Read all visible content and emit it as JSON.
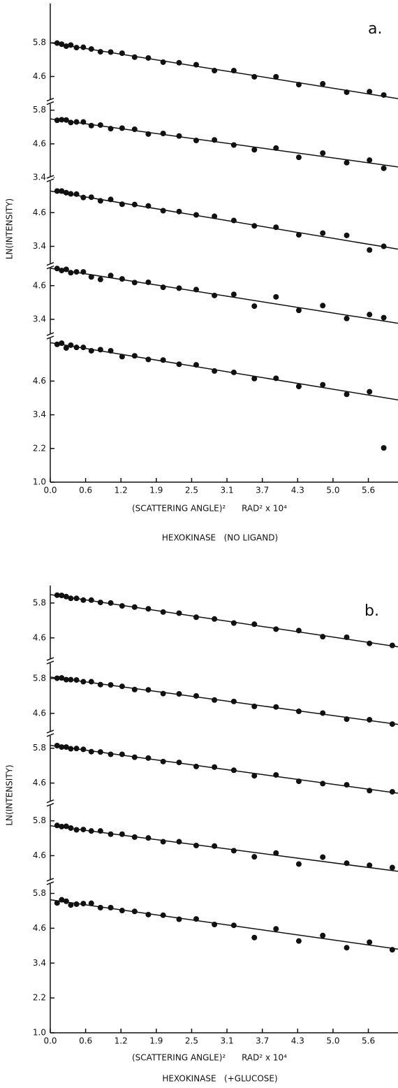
{
  "chart_data": [
    {
      "type": "scatter",
      "title": "HEXOKINASE   (NO LIGAND)",
      "annotation": "a.",
      "xlabel": "(SCATTERING ANGLE)²      RAD² x 10⁴",
      "ylabel": "LN(INTENSITY)",
      "color": "#111111",
      "x": [
        0.12,
        0.2,
        0.28,
        0.36,
        0.46,
        0.58,
        0.72,
        0.88,
        1.06,
        1.26,
        1.48,
        1.72,
        1.98,
        2.26,
        2.56,
        2.88,
        3.22,
        3.58,
        3.96,
        4.36,
        4.78,
        5.2,
        5.6,
        5.85
      ],
      "xlim": [
        0,
        6.1
      ],
      "xticks": [
        {
          "value": 0,
          "label": "0.0"
        },
        {
          "value": 0.62,
          "label": "0.6"
        },
        {
          "value": 1.24,
          "label": "1.2"
        },
        {
          "value": 1.86,
          "label": "1.9"
        },
        {
          "value": 2.48,
          "label": "2.5"
        },
        3.1,
        {
          "value": 3.72,
          "label": "3.7"
        },
        {
          "value": 4.34,
          "label": "4.3"
        },
        {
          "value": 4.96,
          "label": "5.0"
        },
        {
          "value": 5.58,
          "label": "5.6"
        }
      ],
      "panels": [
        {
          "ylim": [
            3.7,
            7.2
          ],
          "yticks": [
            5.8,
            4.6
          ],
          "fit": [
            5.8,
            3.81
          ],
          "values": [
            5.79,
            5.75,
            5.68,
            5.72,
            5.63,
            5.64,
            5.58,
            5.48,
            5.47,
            5.43,
            5.29,
            5.26,
            5.11,
            5.09,
            5.02,
            4.81,
            4.81,
            4.59,
            4.59,
            4.31,
            4.34,
            4.04,
            4.06,
            3.94
          ]
        },
        {
          "ylim": [
            3.35,
            6.1
          ],
          "yticks": [
            5.8,
            4.6,
            3.4
          ],
          "fit": [
            5.49,
            3.78
          ],
          "values": [
            5.44,
            5.46,
            5.45,
            5.36,
            5.38,
            5.38,
            5.25,
            5.27,
            5.14,
            5.16,
            5.12,
            4.95,
            4.97,
            4.88,
            4.72,
            4.74,
            4.56,
            4.39,
            4.45,
            4.12,
            4.27,
            3.93,
            4.02,
            3.73
          ]
        },
        {
          "ylim": [
            2.7,
            5.8
          ],
          "yticks": [
            4.6,
            3.4
          ],
          "fit": [
            5.37,
            3.3
          ],
          "values": [
            5.37,
            5.37,
            5.31,
            5.27,
            5.26,
            5.14,
            5.15,
            5.02,
            5.07,
            4.9,
            4.89,
            4.84,
            4.67,
            4.64,
            4.52,
            4.47,
            4.32,
            4.13,
            4.08,
            3.81,
            3.87,
            3.79,
            3.27,
            3.4
          ]
        },
        {
          "ylim": [
            2.8,
            5.3
          ],
          "yticks": [
            4.6,
            3.4
          ],
          "fit": [
            5.22,
            3.26
          ],
          "values": [
            5.21,
            5.14,
            5.18,
            5.06,
            5.09,
            5.09,
            4.91,
            4.82,
            4.96,
            4.84,
            4.71,
            4.72,
            4.54,
            4.51,
            4.46,
            4.25,
            4.29,
            3.87,
            4.2,
            3.72,
            3.89,
            3.43,
            3.57,
            3.46
          ]
        },
        {
          "ylim": [
            1,
            6.2
          ],
          "yticks": [
            4.6,
            3.4,
            2.2,
            {
              "value": 1,
              "label": "1.0"
            }
          ],
          "fit": [
            5.97,
            3.93
          ],
          "values": [
            5.91,
            5.95,
            5.78,
            5.88,
            5.8,
            5.8,
            5.68,
            5.72,
            5.68,
            5.47,
            5.5,
            5.37,
            5.35,
            5.2,
            5.18,
            4.96,
            4.91,
            4.69,
            4.7,
            4.41,
            4.47,
            4.13,
            4.22,
            2.22
          ]
        }
      ]
    },
    {
      "type": "scatter",
      "title": "HEXOKINASE   (+GLUCOSE)",
      "annotation": "b.",
      "xlabel": "(SCATTERING ANGLE)²      RAD² x 10⁴",
      "ylabel": "LN(INTENSITY)",
      "color": "#111111",
      "x": [
        0.12,
        0.2,
        0.28,
        0.36,
        0.46,
        0.58,
        0.72,
        0.88,
        1.06,
        1.26,
        1.48,
        1.72,
        1.98,
        2.26,
        2.56,
        2.88,
        3.22,
        3.58,
        3.96,
        4.36,
        4.78,
        5.2,
        5.6,
        6.0
      ],
      "xlim": [
        0,
        6.1
      ],
      "xticks": [
        {
          "value": 0,
          "label": "0.0"
        },
        {
          "value": 0.62,
          "label": "0.6"
        },
        {
          "value": 1.24,
          "label": "1.2"
        },
        {
          "value": 1.86,
          "label": "1.9"
        },
        {
          "value": 2.48,
          "label": "2.5"
        },
        3.1,
        {
          "value": 3.72,
          "label": "3.7"
        },
        {
          "value": 4.34,
          "label": "4.3"
        },
        {
          "value": 4.96,
          "label": "5.0"
        },
        {
          "value": 5.58,
          "label": "5.6"
        }
      ],
      "panels": [
        {
          "ylim": [
            3.8,
            6.4
          ],
          "yticks": [
            5.8,
            4.6
          ],
          "fit": [
            6.09,
            4.29
          ],
          "values": [
            6.07,
            6.06,
            6.02,
            5.96,
            5.96,
            5.9,
            5.9,
            5.82,
            5.8,
            5.7,
            5.66,
            5.6,
            5.49,
            5.45,
            5.31,
            5.25,
            5.11,
            5.07,
            4.9,
            4.85,
            4.64,
            4.62,
            4.41,
            4.34
          ]
        },
        {
          "ylim": [
            3.9,
            6.4
          ],
          "yticks": [
            5.8,
            4.6
          ],
          "fit": [
            5.85,
            4.22
          ],
          "values": [
            5.81,
            5.82,
            5.76,
            5.76,
            5.75,
            5.69,
            5.69,
            5.59,
            5.58,
            5.53,
            5.42,
            5.41,
            5.28,
            5.27,
            5.2,
            5.06,
            5.01,
            4.84,
            4.82,
            4.67,
            4.61,
            4.4,
            4.38,
            4.23
          ]
        },
        {
          "ylim": [
            3.9,
            6.3
          ],
          "yticks": [
            5.8,
            4.6
          ],
          "fit": [
            5.9,
            4.25
          ],
          "values": [
            5.89,
            5.84,
            5.84,
            5.78,
            5.79,
            5.76,
            5.68,
            5.67,
            5.59,
            5.59,
            5.49,
            5.46,
            5.34,
            5.31,
            5.17,
            5.15,
            5.04,
            4.85,
            4.88,
            4.66,
            4.58,
            4.54,
            4.34,
            4.3
          ]
        },
        {
          "ylim": [
            3.7,
            6.4
          ],
          "yticks": [
            5.8,
            4.6
          ],
          "fit": [
            5.63,
            4.06
          ],
          "values": [
            5.64,
            5.6,
            5.61,
            5.55,
            5.49,
            5.5,
            5.45,
            5.45,
            5.34,
            5.34,
            5.24,
            5.21,
            5.08,
            5.08,
            4.95,
            4.93,
            4.77,
            4.56,
            4.69,
            4.31,
            4.55,
            4.34,
            4.27,
            4.19
          ]
        },
        {
          "ylim": [
            1,
            6.2
          ],
          "yticks": [
            5.8,
            4.6,
            3.4,
            2.2,
            {
              "value": 1,
              "label": "1.0"
            }
          ],
          "fit": [
            5.58,
            3.88
          ],
          "values": [
            5.47,
            5.58,
            5.53,
            5.4,
            5.43,
            5.45,
            5.46,
            5.31,
            5.31,
            5.21,
            5.18,
            5.07,
            5.05,
            4.91,
            4.92,
            4.73,
            4.7,
            4.28,
            4.58,
            4.16,
            4.35,
            3.93,
            4.12,
            3.86
          ]
        }
      ]
    }
  ]
}
